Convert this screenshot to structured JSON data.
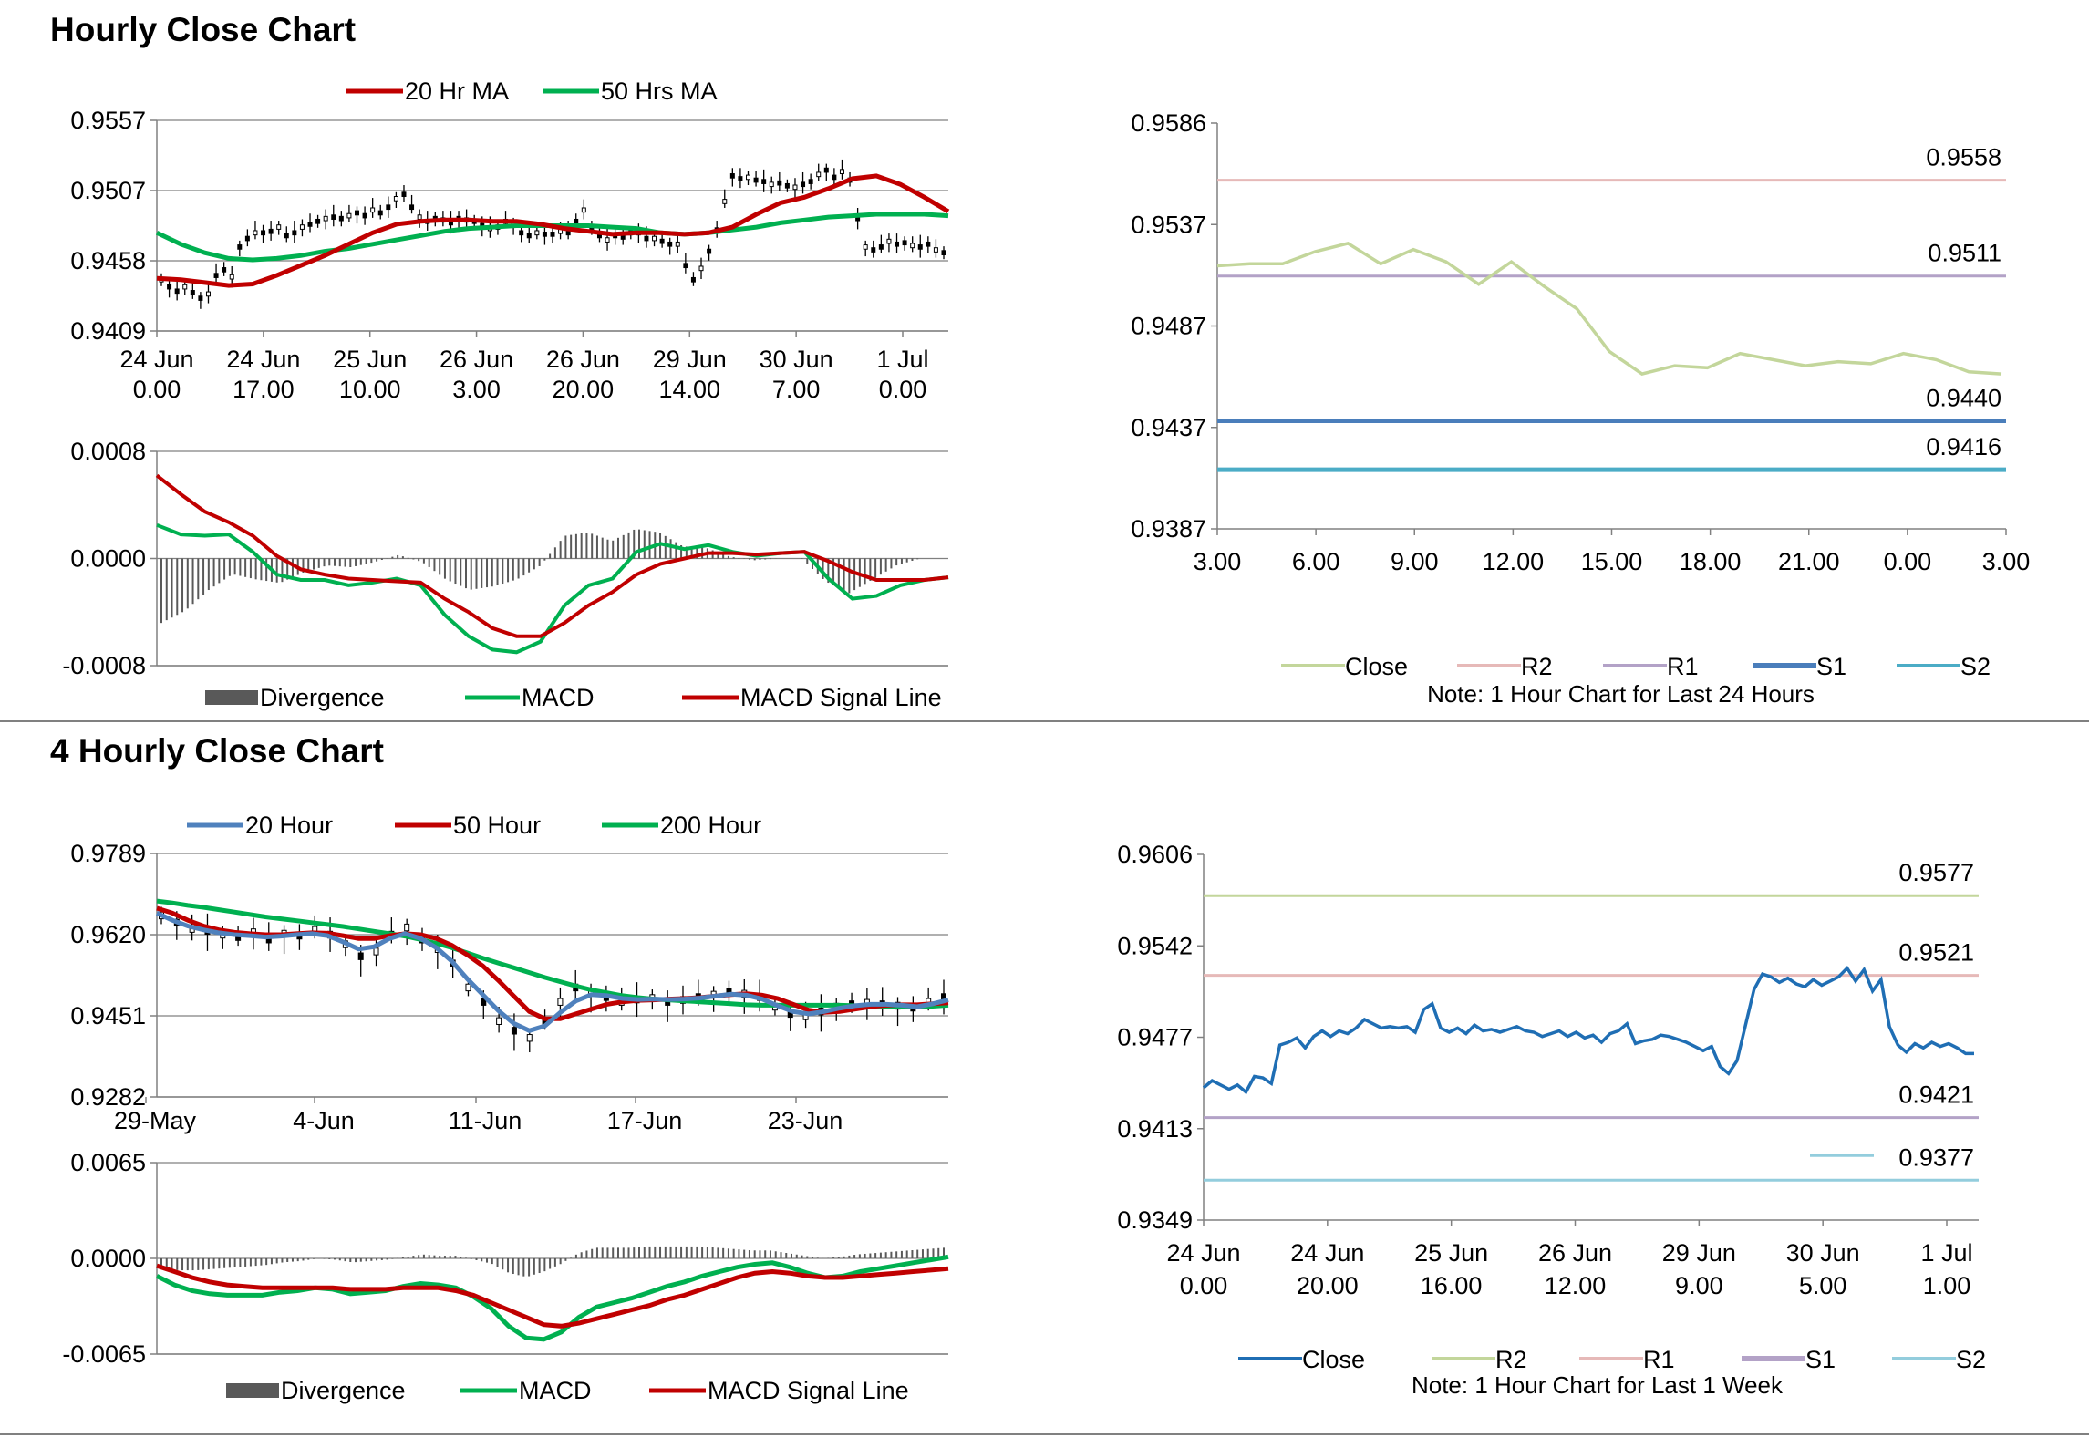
{
  "section_titles": [
    "Hourly Close Chart",
    "4 Hourly Close Chart"
  ],
  "colors": {
    "ma_red": "#C00000",
    "ma_green": "#00B050",
    "ma_blue": "#4F81BD",
    "divergence": "#595959",
    "grid": "#808080",
    "close_light": "#C3D69B",
    "r2_pink": "#E6B9B8",
    "r1_purple": "#B3A2C7",
    "s1_blue": "#4A7EBB",
    "s2_teal": "#4BACC6",
    "close_blue": "#1F6EB4",
    "r2_green": "#C3D69B",
    "s2_light": "#93CDDD"
  },
  "chart_data": [
    {
      "id": "h1_price",
      "type": "line",
      "legend": [
        "20 Hr MA",
        "50 Hrs MA"
      ],
      "yticks": [
        "0.9557",
        "0.9507",
        "0.9458",
        "0.9409"
      ],
      "ylim": [
        0.9409,
        0.9557
      ],
      "xticks": [
        [
          "24 Jun",
          "0.00"
        ],
        [
          "24 Jun",
          "17.00"
        ],
        [
          "25 Jun",
          "10.00"
        ],
        [
          "26 Jun",
          "3.00"
        ],
        [
          "26 Jun",
          "20.00"
        ],
        [
          "29 Jun",
          "14.00"
        ],
        [
          "30 Jun",
          "7.00"
        ],
        [
          "1 Jul",
          "0.00"
        ]
      ],
      "close": [
        0.9445,
        0.944,
        0.9437,
        0.944,
        0.9436,
        0.9432,
        0.9435,
        0.9448,
        0.9452,
        0.9447,
        0.9468,
        0.9474,
        0.9478,
        0.9478,
        0.9479,
        0.9482,
        0.9476,
        0.9478,
        0.9482,
        0.9484,
        0.9486,
        0.9488,
        0.9489,
        0.9488,
        0.949,
        0.9492,
        0.949,
        0.9494,
        0.9492,
        0.9496,
        0.9502,
        0.9505,
        0.9496,
        0.9489,
        0.9486,
        0.9488,
        0.9487,
        0.9485,
        0.9488,
        0.9487,
        0.9486,
        0.9483,
        0.9481,
        0.9482,
        0.9486,
        0.9484,
        0.9478,
        0.9476,
        0.9478,
        0.9477,
        0.9477,
        0.9479,
        0.9478,
        0.9486,
        0.9494,
        0.9482,
        0.9476,
        0.9473,
        0.9476,
        0.9475,
        0.9478,
        0.9478,
        0.9474,
        0.9474,
        0.9472,
        0.947,
        0.947,
        0.9455,
        0.9445,
        0.9453,
        0.9465,
        0.948,
        0.95,
        0.9518,
        0.9516,
        0.9517,
        0.9515,
        0.9514,
        0.9512,
        0.9513,
        0.9511,
        0.951,
        0.9512,
        0.9514,
        0.9519,
        0.9522,
        0.9517,
        0.9521,
        0.9515,
        0.9488,
        0.9468,
        0.9466,
        0.9468,
        0.9472,
        0.947,
        0.9471,
        0.9469,
        0.9468,
        0.947,
        0.9466,
        0.9464
      ],
      "ma20": [
        0.9446,
        0.9445,
        0.9443,
        0.9441,
        0.9442,
        0.9448,
        0.9455,
        0.9462,
        0.947,
        0.9478,
        0.9484,
        0.9486,
        0.9487,
        0.9487,
        0.9486,
        0.9486,
        0.9484,
        0.9481,
        0.9479,
        0.9477,
        0.9478,
        0.9478,
        0.9477,
        0.9478,
        0.9482,
        0.9491,
        0.9499,
        0.9503,
        0.9509,
        0.9516,
        0.9518,
        0.9512,
        0.9503,
        0.9493
      ],
      "ma50": [
        0.9478,
        0.947,
        0.9464,
        0.946,
        0.9459,
        0.946,
        0.9462,
        0.9465,
        0.9467,
        0.947,
        0.9473,
        0.9476,
        0.9479,
        0.9481,
        0.9482,
        0.9483,
        0.9483,
        0.9483,
        0.9483,
        0.9482,
        0.9481,
        0.9478,
        0.9477,
        0.9478,
        0.948,
        0.9482,
        0.9485,
        0.9487,
        0.9489,
        0.949,
        0.9491,
        0.9491,
        0.9491,
        0.949
      ]
    },
    {
      "id": "h1_macd",
      "type": "line",
      "legend": [
        "Divergence",
        "MACD",
        "MACD Signal Line"
      ],
      "yticks": [
        "0.0008",
        "0.0000",
        "-0.0008"
      ],
      "ylim": [
        -0.0008,
        0.0008
      ],
      "macd": [
        0.00025,
        0.00018,
        0.00017,
        0.00018,
        5e-05,
        -0.00012,
        -0.00016,
        -0.00016,
        -0.0002,
        -0.00018,
        -0.00015,
        -0.0002,
        -0.00042,
        -0.00058,
        -0.00068,
        -0.0007,
        -0.00062,
        -0.00035,
        -0.0002,
        -0.00015,
        5e-05,
        0.00011,
        7e-05,
        0.0001,
        5e-05,
        2e-05,
        4e-05,
        5e-05,
        -0.00015,
        -0.0003,
        -0.00028,
        -0.0002,
        -0.00016,
        -0.00014
      ],
      "signal": [
        0.00062,
        0.00048,
        0.00035,
        0.00027,
        0.00017,
        2e-05,
        -8e-05,
        -0.00012,
        -0.00015,
        -0.00016,
        -0.00017,
        -0.00018,
        -0.0003,
        -0.0004,
        -0.00052,
        -0.00058,
        -0.00058,
        -0.00048,
        -0.00035,
        -0.00025,
        -0.00012,
        -4e-05,
        0.0,
        4e-05,
        4e-05,
        3e-05,
        4e-05,
        5e-05,
        -2e-05,
        -0.0001,
        -0.00016,
        -0.00016,
        -0.00016,
        -0.00014
      ]
    },
    {
      "id": "h1_levels",
      "type": "line",
      "legend": [
        "Close",
        "R2",
        "R1",
        "S1",
        "S2"
      ],
      "note": "Note: 1 Hour Chart for Last 24 Hours",
      "yticks": [
        "0.9586",
        "0.9537",
        "0.9487",
        "0.9437",
        "0.9387"
      ],
      "ylim": [
        0.9387,
        0.9586
      ],
      "xticks": [
        "3.00",
        "6.00",
        "9.00",
        "12.00",
        "15.00",
        "18.00",
        "21.00",
        "0.00",
        "3.00"
      ],
      "close": [
        0.9516,
        0.9517,
        0.9517,
        0.9523,
        0.9527,
        0.9517,
        0.9524,
        0.9518,
        0.9507,
        0.9518,
        0.9506,
        0.9495,
        0.9474,
        0.9463,
        0.9467,
        0.9466,
        0.9473,
        0.947,
        0.9467,
        0.9469,
        0.9468,
        0.9473,
        0.947,
        0.9464,
        0.9463
      ],
      "levels": [
        {
          "name": "R2",
          "value": 0.9558,
          "label": "0.9558"
        },
        {
          "name": "R1",
          "value": 0.9511,
          "label": "0.9511"
        },
        {
          "name": "S1",
          "value": 0.944,
          "label": "0.9440"
        },
        {
          "name": "S2",
          "value": 0.9416,
          "label": "0.9416"
        }
      ]
    },
    {
      "id": "h4_price",
      "type": "line",
      "legend": [
        "20 Hour",
        "50 Hour",
        "200 Hour"
      ],
      "yticks": [
        "0.9789",
        "0.9620",
        "0.9451",
        "0.9282"
      ],
      "ylim": [
        0.9282,
        0.9789
      ],
      "xticks": [
        "29-May",
        "4-Jun",
        "11-Jun",
        "17-Jun",
        "23-Jun"
      ],
      "close": [
        0.966,
        0.9645,
        0.9632,
        0.9628,
        0.962,
        0.9615,
        0.9625,
        0.961,
        0.9622,
        0.9618,
        0.963,
        0.962,
        0.96,
        0.9575,
        0.9585,
        0.962,
        0.9635,
        0.961,
        0.959,
        0.956,
        0.951,
        0.948,
        0.944,
        0.942,
        0.9405,
        0.944,
        0.948,
        0.951,
        0.95,
        0.949,
        0.948,
        0.9485,
        0.9488,
        0.948,
        0.9484,
        0.949,
        0.9495,
        0.95,
        0.9497,
        0.949,
        0.947,
        0.9455,
        0.945,
        0.946,
        0.947,
        0.9475,
        0.9478,
        0.9475,
        0.9472,
        0.9468,
        0.948,
        0.949
      ],
      "ma20": [
        0.9665,
        0.965,
        0.9638,
        0.963,
        0.9624,
        0.962,
        0.9618,
        0.9615,
        0.9617,
        0.962,
        0.9622,
        0.9618,
        0.9605,
        0.959,
        0.9595,
        0.9612,
        0.9622,
        0.9612,
        0.9593,
        0.9565,
        0.9528,
        0.9495,
        0.9462,
        0.9435,
        0.942,
        0.943,
        0.9458,
        0.9482,
        0.9495,
        0.9493,
        0.9487,
        0.9485,
        0.9486,
        0.9485,
        0.9486,
        0.9488,
        0.9492,
        0.9496,
        0.9494,
        0.9486,
        0.9472,
        0.946,
        0.9455,
        0.946,
        0.9467,
        0.9472,
        0.9475,
        0.9475,
        0.9473,
        0.947,
        0.9476,
        0.9484
      ],
      "ma50": [
        0.9675,
        0.9665,
        0.965,
        0.9638,
        0.963,
        0.9625,
        0.9622,
        0.962,
        0.962,
        0.9622,
        0.9624,
        0.9623,
        0.9618,
        0.9612,
        0.9612,
        0.9618,
        0.9622,
        0.962,
        0.9612,
        0.9598,
        0.9578,
        0.9555,
        0.9525,
        0.9492,
        0.946,
        0.9445,
        0.9445,
        0.9455,
        0.9465,
        0.9475,
        0.948,
        0.9483,
        0.9484,
        0.9486,
        0.9487,
        0.9489,
        0.9492,
        0.9495,
        0.9497,
        0.9494,
        0.9487,
        0.9475,
        0.9463,
        0.9458,
        0.946,
        0.9465,
        0.947,
        0.9473,
        0.9474,
        0.9474,
        0.9476,
        0.9478
      ],
      "ma200": [
        0.969,
        0.9686,
        0.9681,
        0.9677,
        0.9672,
        0.9667,
        0.9662,
        0.9657,
        0.9653,
        0.9649,
        0.9645,
        0.9641,
        0.9637,
        0.9632,
        0.9627,
        0.9622,
        0.9617,
        0.961,
        0.9602,
        0.9593,
        0.9582,
        0.9571,
        0.9561,
        0.9551,
        0.9541,
        0.9531,
        0.9522,
        0.9513,
        0.9505,
        0.9499,
        0.9493,
        0.9489,
        0.9486,
        0.9484,
        0.9482,
        0.948,
        0.9478,
        0.9476,
        0.9474,
        0.9473,
        0.9473,
        0.9473,
        0.9473,
        0.9473,
        0.9473,
        0.9472,
        0.9471,
        0.947,
        0.947,
        0.947,
        0.9471,
        0.9473
      ]
    },
    {
      "id": "h4_macd",
      "type": "line",
      "legend": [
        "Divergence",
        "MACD",
        "MACD Signal Line"
      ],
      "yticks": [
        "0.0065",
        "0.0000",
        "-0.0065"
      ],
      "ylim": [
        -0.0065,
        0.0065
      ],
      "macd": [
        -0.0012,
        -0.0018,
        -0.0022,
        -0.0024,
        -0.0025,
        -0.0025,
        -0.0025,
        -0.0023,
        -0.0022,
        -0.002,
        -0.0021,
        -0.0024,
        -0.0023,
        -0.0022,
        -0.0019,
        -0.0017,
        -0.0018,
        -0.002,
        -0.0026,
        -0.0034,
        -0.0046,
        -0.0054,
        -0.0055,
        -0.005,
        -0.004,
        -0.0033,
        -0.003,
        -0.0027,
        -0.0023,
        -0.0019,
        -0.0016,
        -0.0012,
        -0.0009,
        -0.0006,
        -0.0004,
        -0.0003,
        -0.0006,
        -0.001,
        -0.0013,
        -0.0012,
        -0.0009,
        -0.0007,
        -0.0005,
        -0.0003,
        -0.0001,
        0.0001
      ],
      "signal": [
        -0.0005,
        -0.0009,
        -0.0013,
        -0.0016,
        -0.0018,
        -0.0019,
        -0.002,
        -0.002,
        -0.002,
        -0.002,
        -0.002,
        -0.0021,
        -0.0021,
        -0.0021,
        -0.002,
        -0.002,
        -0.002,
        -0.0022,
        -0.0025,
        -0.003,
        -0.0035,
        -0.004,
        -0.0045,
        -0.0046,
        -0.0044,
        -0.0041,
        -0.0038,
        -0.0035,
        -0.0032,
        -0.0028,
        -0.0025,
        -0.0021,
        -0.0017,
        -0.0013,
        -0.001,
        -0.0009,
        -0.001,
        -0.0012,
        -0.0013,
        -0.0013,
        -0.0012,
        -0.0011,
        -0.001,
        -0.0009,
        -0.0008,
        -0.0007
      ]
    },
    {
      "id": "h4_levels",
      "type": "line",
      "legend": [
        "Close",
        "R2",
        "R1",
        "S1",
        "S2"
      ],
      "note": "Note: 1 Hour Chart for Last 1 Week",
      "yticks": [
        "0.9606",
        "0.9542",
        "0.9477",
        "0.9413",
        "0.9349"
      ],
      "ylim": [
        0.9349,
        0.9606
      ],
      "xticks": [
        [
          "24 Jun",
          "0.00"
        ],
        [
          "24 Jun",
          "20.00"
        ],
        [
          "25 Jun",
          "16.00"
        ],
        [
          "26 Jun",
          "12.00"
        ],
        [
          "29 Jun",
          "9.00"
        ],
        [
          "30 Jun",
          "5.00"
        ],
        [
          "1 Jul",
          "1.00"
        ]
      ],
      "close": [
        0.9442,
        0.9447,
        0.9444,
        0.9441,
        0.9444,
        0.9439,
        0.945,
        0.9449,
        0.9445,
        0.9472,
        0.9474,
        0.9477,
        0.947,
        0.9478,
        0.9482,
        0.9478,
        0.9482,
        0.948,
        0.9484,
        0.949,
        0.9487,
        0.9484,
        0.9485,
        0.9484,
        0.9485,
        0.9481,
        0.9497,
        0.9501,
        0.9484,
        0.9481,
        0.9484,
        0.948,
        0.9486,
        0.9482,
        0.9483,
        0.9481,
        0.9483,
        0.9485,
        0.9482,
        0.9481,
        0.9478,
        0.948,
        0.9482,
        0.9478,
        0.9481,
        0.9477,
        0.9479,
        0.9474,
        0.948,
        0.9482,
        0.9487,
        0.9473,
        0.9475,
        0.9476,
        0.9479,
        0.9478,
        0.9476,
        0.9474,
        0.9471,
        0.9468,
        0.9471,
        0.9457,
        0.9452,
        0.9461,
        0.9486,
        0.9511,
        0.9522,
        0.952,
        0.9516,
        0.9519,
        0.9515,
        0.9513,
        0.9518,
        0.9514,
        0.9517,
        0.952,
        0.9526,
        0.9517,
        0.9525,
        0.951,
        0.9518,
        0.9485,
        0.9472,
        0.9467,
        0.9473,
        0.947,
        0.9474,
        0.9471,
        0.9473,
        0.947,
        0.9466,
        0.9466
      ],
      "levels": [
        {
          "name": "R2",
          "value": 0.9577,
          "label": "0.9577"
        },
        {
          "name": "R1",
          "value": 0.9521,
          "label": "0.9521"
        },
        {
          "name": "S1",
          "value": 0.9421,
          "label": "0.9421"
        },
        {
          "name": "S2",
          "value": 0.9377,
          "label": "0.9377"
        }
      ]
    }
  ]
}
